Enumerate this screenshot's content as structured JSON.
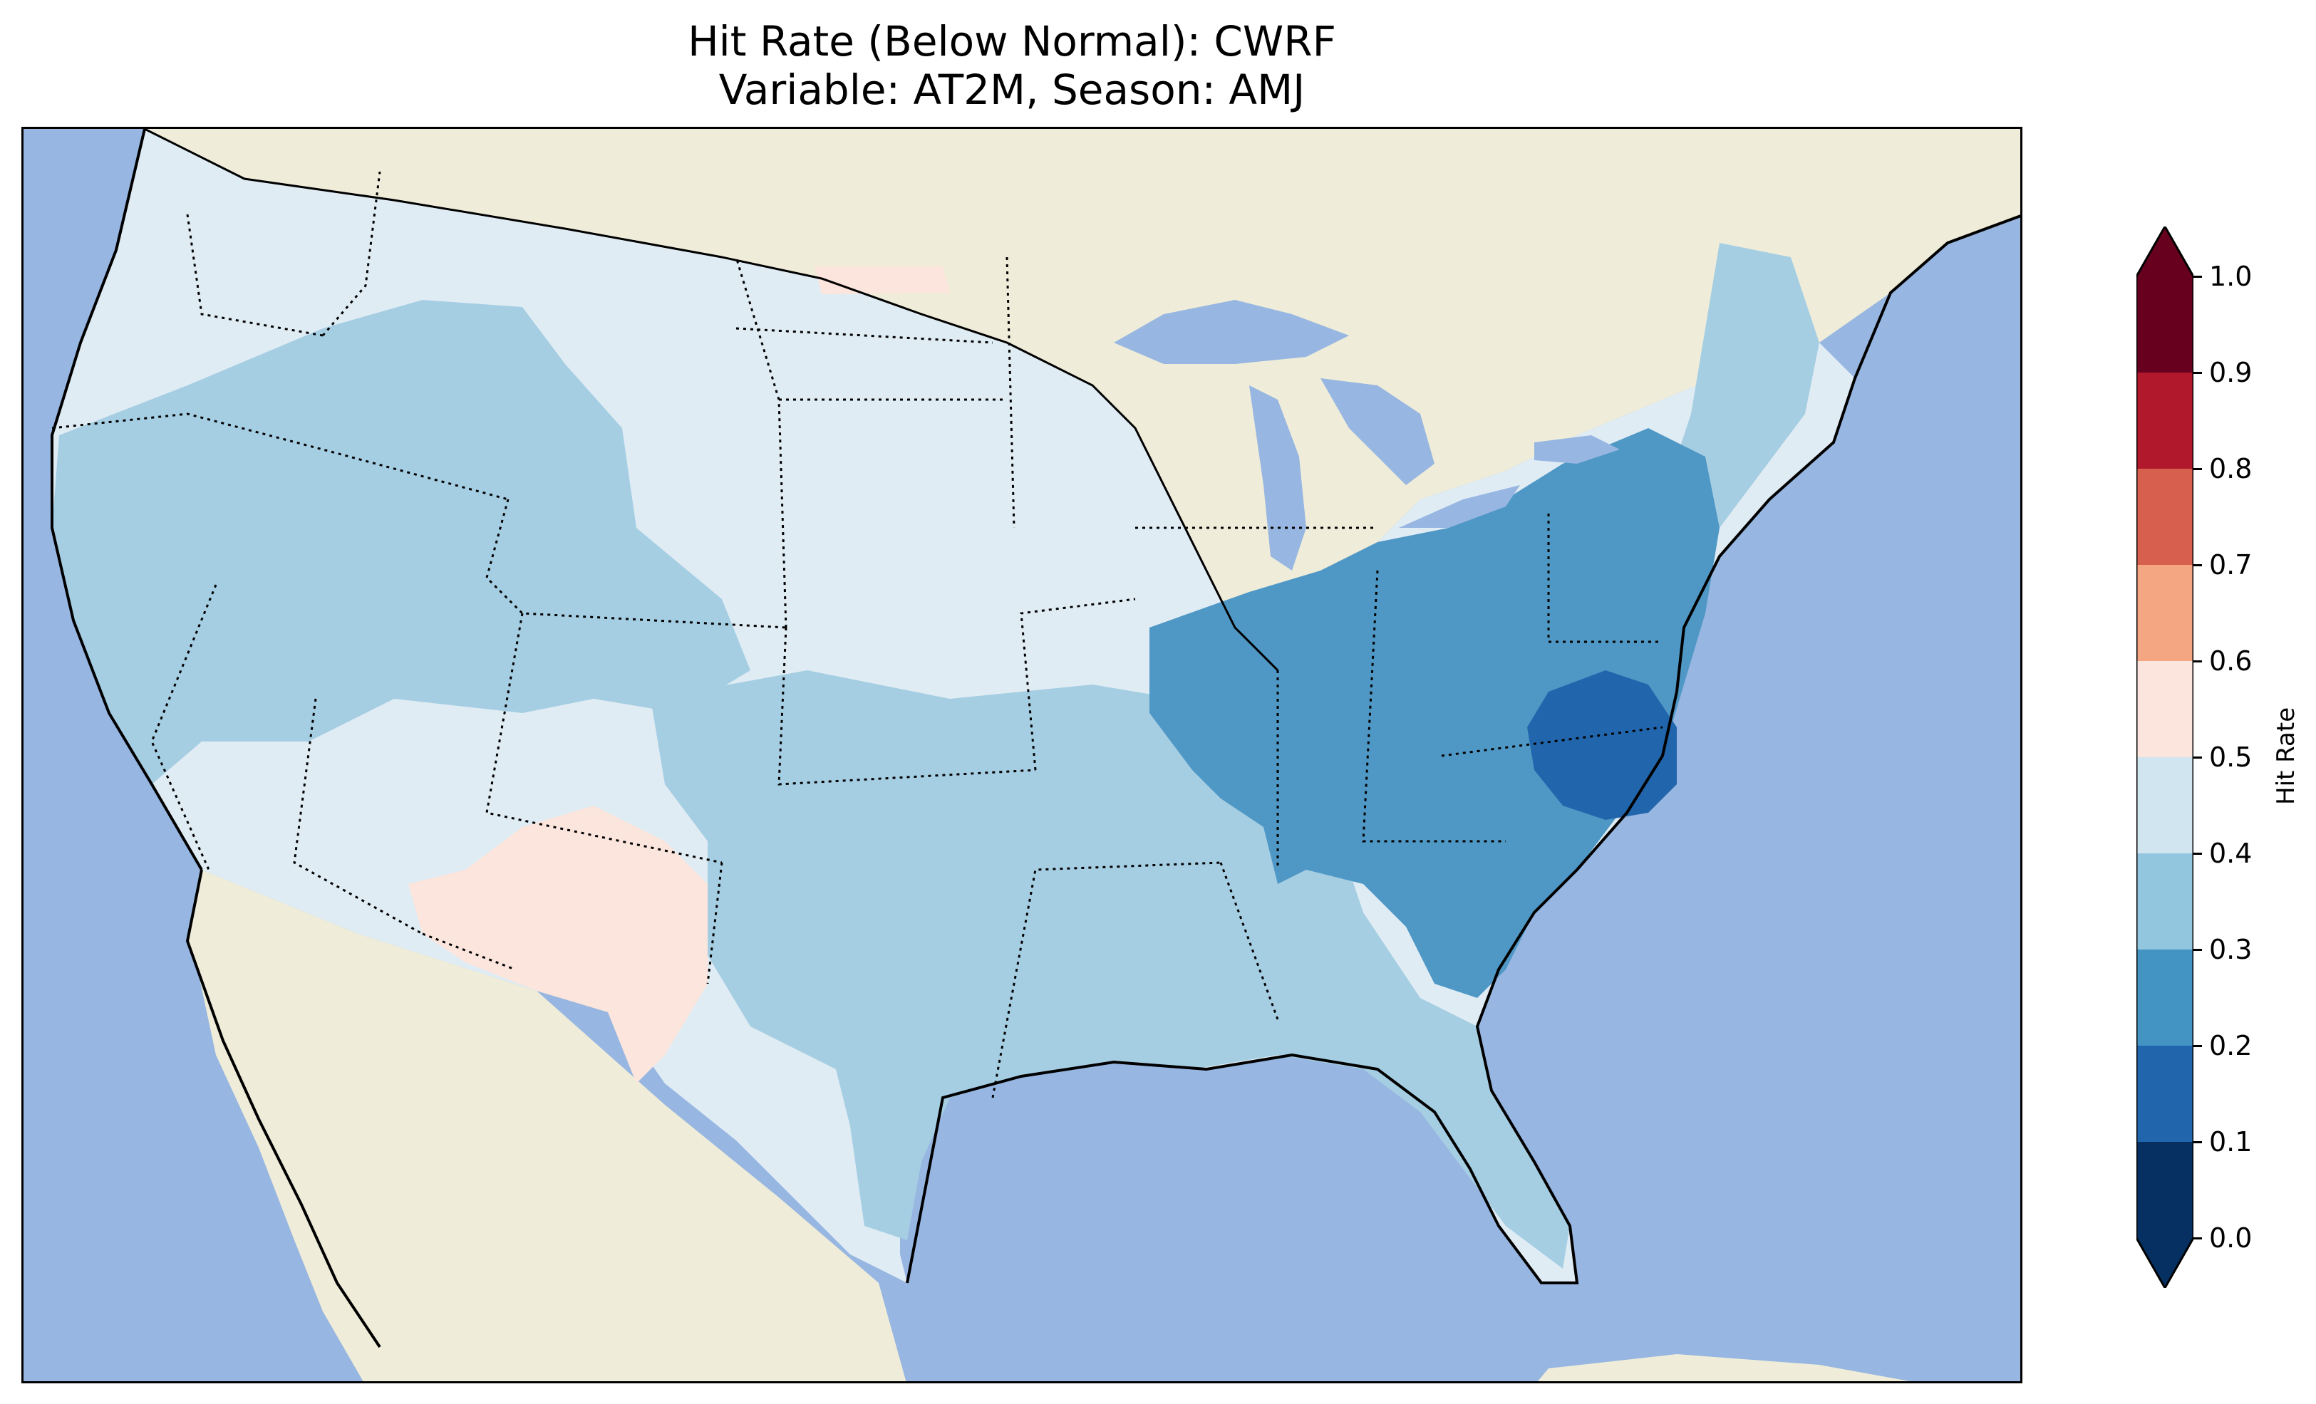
{
  "title": {
    "line1": "Hit Rate (Below Normal): CWRF",
    "line2": "Variable: AT2M, Season: AMJ"
  },
  "colors": {
    "ocean": "#97b6e1",
    "land": "#efedd9",
    "lakes": "#97b6e1",
    "coastline": "#000000",
    "borders": "#000000"
  },
  "map_data": {
    "region": "Contiguous United States",
    "projection": "Lambert Conformal",
    "dominant_values": {
      "northwest_and_plains": "0.4–0.5",
      "rockies_and_great_basin": "0.3–0.4",
      "southwest_new_mexico_arizona": "0.5–0.6",
      "ohio_valley_and_mid_atlantic": "0.2–0.3",
      "virginia_north_carolina_core": "0.1–0.2",
      "southern_plains_and_gulf": "0.3–0.4"
    }
  },
  "colorbar": {
    "label": "Hit Rate",
    "ticks": [
      "0.0",
      "0.1",
      "0.2",
      "0.3",
      "0.4",
      "0.5",
      "0.6",
      "0.7",
      "0.8",
      "0.9",
      "1.0"
    ],
    "colors": [
      "#053061",
      "#2166ac",
      "#4393c3",
      "#92c5de",
      "#d1e5f0",
      "#fbe5dc",
      "#f4a582",
      "#d6604d",
      "#b2182b",
      "#67001f"
    ],
    "extend": "both"
  }
}
